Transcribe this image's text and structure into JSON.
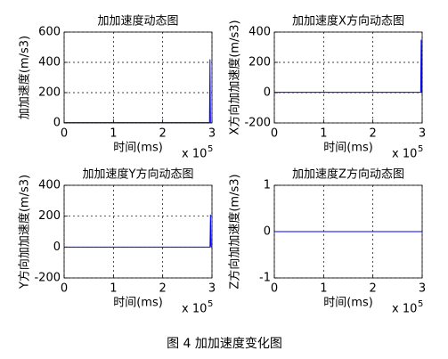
{
  "chart_data": [
    {
      "type": "line",
      "title": "加加速度动态图",
      "xlabel": "时间(ms)",
      "ylabel": "加加速度(m/s3)",
      "x_multiplier": "x 10",
      "x_multiplier_exp": "5",
      "x": [
        0,
        2.95,
        2.96,
        2.97
      ],
      "values": [
        2,
        2,
        420,
        0
      ],
      "color": "#0000ff",
      "xlim": [
        0,
        3
      ],
      "ylim": [
        0,
        600
      ],
      "xticks": [
        0,
        1,
        2,
        3
      ],
      "yticks": [
        0,
        200,
        400,
        600
      ],
      "grid": true
    },
    {
      "type": "line",
      "title": "加加速度X方向动态图",
      "xlabel": "时间(ms)",
      "ylabel": "X方向加加速度(m/s3)",
      "x_multiplier": "x 10",
      "x_multiplier_exp": "5",
      "x": [
        0,
        2.97,
        2.98,
        2.99
      ],
      "values": [
        2,
        2,
        350,
        0
      ],
      "color": "#0000ff",
      "xlim": [
        0,
        3
      ],
      "ylim": [
        -200,
        400
      ],
      "xticks": [
        0,
        1,
        2,
        3
      ],
      "yticks": [
        -200,
        0,
        200,
        400
      ],
      "grid": true
    },
    {
      "type": "line",
      "title": "加加速度Y方向动态图",
      "xlabel": "时间(ms)",
      "ylabel": "Y方向加加速度(m/s3)",
      "x_multiplier": "x 10",
      "x_multiplier_exp": "5",
      "x": [
        0,
        2.96,
        2.97,
        2.98
      ],
      "values": [
        0,
        0,
        210,
        0
      ],
      "color": "#0000ff",
      "xlim": [
        0,
        3
      ],
      "ylim": [
        -200,
        400
      ],
      "xticks": [
        0,
        1,
        2,
        3
      ],
      "yticks": [
        -200,
        0,
        200,
        400
      ],
      "grid": true
    },
    {
      "type": "line",
      "title": "加加速度Z方向动态图",
      "xlabel": "时间(ms)",
      "ylabel": "Z方向加加速度(m/s3)",
      "x_multiplier": "x 10",
      "x_multiplier_exp": "5",
      "x": [
        0,
        3
      ],
      "values": [
        0,
        0
      ],
      "color": "#0000ff",
      "xlim": [
        0,
        3
      ],
      "ylim": [
        -1,
        1
      ],
      "xticks": [
        0,
        1,
        2,
        3
      ],
      "yticks": [
        -1,
        0,
        1
      ],
      "grid": true
    }
  ],
  "figure_caption": "图 4  加加速度变化图"
}
